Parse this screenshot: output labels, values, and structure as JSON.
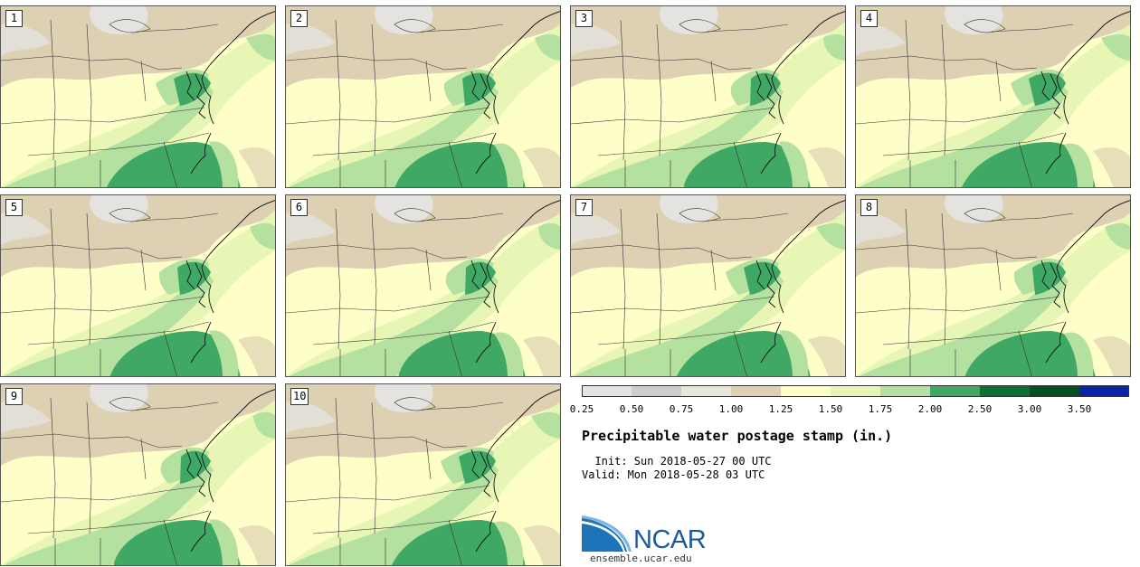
{
  "title": "Precipitable water postage stamp (in.)",
  "init_text": "  Init: Sun 2018-05-27 00 UTC",
  "valid_text": "Valid: Mon 2018-05-28 03 UTC",
  "organization": "NCAR",
  "website": "ensemble.ucar.edu",
  "members": [
    "1",
    "2",
    "3",
    "4",
    "5",
    "6",
    "7",
    "8",
    "9",
    "10"
  ],
  "legend": {
    "ticks": [
      "0.25",
      "0.50",
      "0.75",
      "1.00",
      "1.25",
      "1.50",
      "1.75",
      "2.00",
      "2.50",
      "3.00",
      "3.50"
    ],
    "colors": [
      "#e4e3df",
      "#cdcdcd",
      "#e8e6d9",
      "#ddd0b3",
      "#fefec9",
      "#e7f6b4",
      "#b4e1a0",
      "#3fa864",
      "#0a7035",
      "#054f25",
      "#0a24a8"
    ]
  },
  "colors": {
    "land_low": "#ddd0b3",
    "land_mid": "#fefec9",
    "green_light": "#e7f6b4",
    "green_mid": "#b4e1a0",
    "green_dark": "#3fa864",
    "green_deep": "#0a7035",
    "gray_dry": "#e4e3df",
    "logo_blue": "#1d5a9c"
  }
}
